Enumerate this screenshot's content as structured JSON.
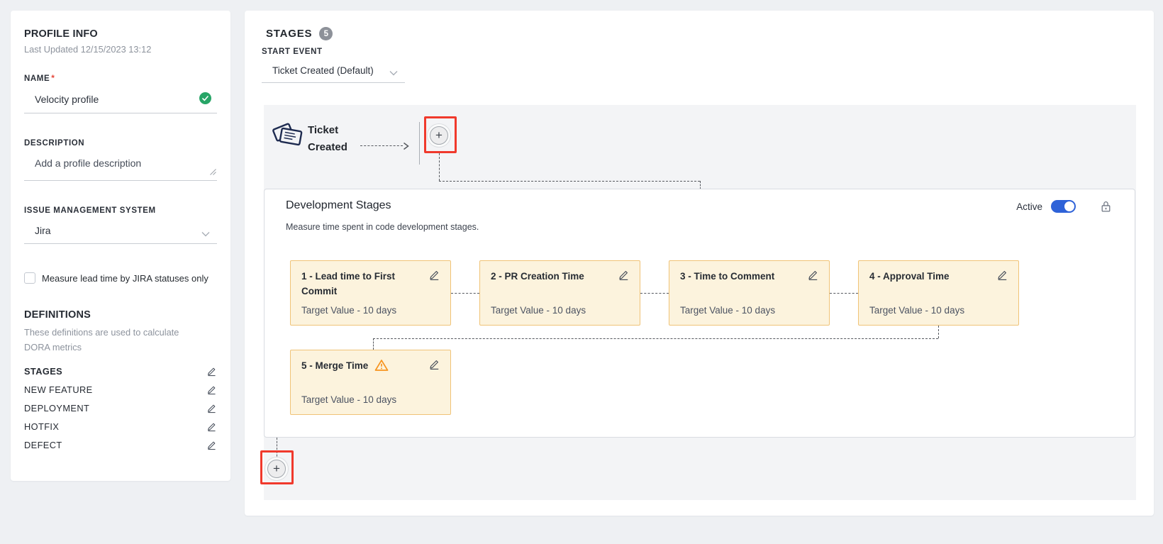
{
  "sidebar": {
    "title": "PROFILE INFO",
    "last_updated_label": "Last Updated",
    "last_updated_value": "12/15/2023 13:12",
    "name": {
      "label": "NAME",
      "required_mark": "*",
      "value": "Velocity profile"
    },
    "description": {
      "label": "DESCRIPTION",
      "placeholder": "Add a profile description"
    },
    "issue_management": {
      "label": "ISSUE MANAGEMENT SYSTEM",
      "value": "Jira"
    },
    "lead_time_checkbox": {
      "label": "Measure lead time by JIRA statuses only",
      "checked": false
    },
    "definitions": {
      "title": "DEFINITIONS",
      "subtitle": "These definitions are used to calculate DORA metrics",
      "items": [
        {
          "label": "STAGES"
        },
        {
          "label": "NEW FEATURE"
        },
        {
          "label": "DEPLOYMENT"
        },
        {
          "label": "HOTFIX"
        },
        {
          "label": "DEFECT"
        }
      ]
    }
  },
  "stages": {
    "title": "STAGES",
    "count_badge": "5",
    "start_event_label": "START EVENT",
    "start_event_value": "Ticket Created (Default)",
    "start_node_label": "Ticket Created",
    "add_button_glyph": "+",
    "panel": {
      "title": "Development Stages",
      "subtitle": "Measure time spent in code development stages.",
      "active_label": "Active",
      "active_on": true,
      "cards": [
        {
          "title": "1 - Lead time to First Commit",
          "target_value": "Target Value - 10 days",
          "warning": false
        },
        {
          "title": "2 - PR Creation Time",
          "target_value": "Target Value - 10 days",
          "warning": false
        },
        {
          "title": "3 - Time to Comment",
          "target_value": "Target Value - 10 days",
          "warning": false
        },
        {
          "title": "4 - Approval Time",
          "target_value": "Target Value - 10 days",
          "warning": false
        },
        {
          "title": "5 - Merge Time",
          "target_value": "Target Value - 10 days",
          "warning": true
        }
      ]
    }
  },
  "colors": {
    "accent_blue": "#2e62d8",
    "success_green": "#27a567",
    "warning_orange": "#f7941f",
    "highlight_red": "#f0392c",
    "stage_card_bg": "#fcf3dd",
    "stage_card_border": "#f0c377"
  }
}
